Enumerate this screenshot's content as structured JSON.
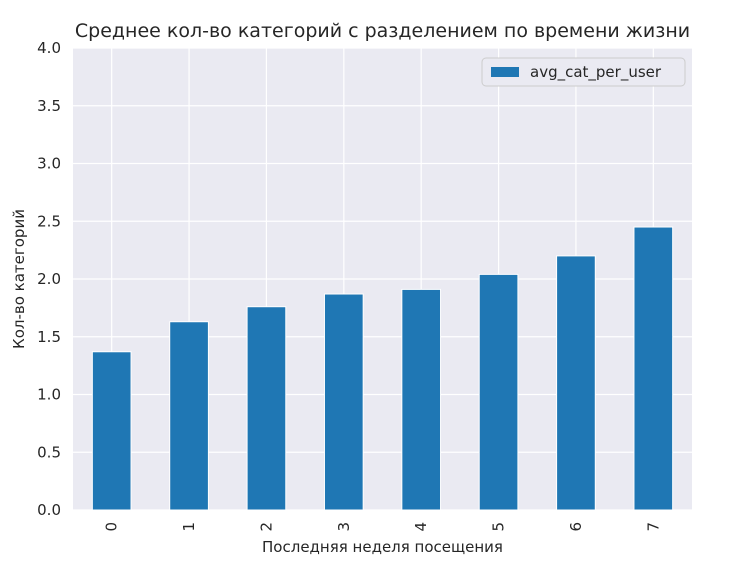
{
  "chart_data": {
    "type": "bar",
    "title": "Среднее кол-во категорий с разделением по времени жизни",
    "xlabel": "Последняя неделя посещения",
    "ylabel": "Кол-во категорий",
    "categories": [
      "0",
      "1",
      "2",
      "3",
      "4",
      "5",
      "6",
      "7"
    ],
    "series": [
      {
        "name": "avg_cat_per_user",
        "values": [
          1.37,
          1.63,
          1.76,
          1.87,
          1.91,
          2.04,
          2.2,
          2.45
        ],
        "color": "#1f77b4"
      }
    ],
    "ylim": [
      0,
      4
    ],
    "yticks": [
      "0.0",
      "0.5",
      "1.0",
      "1.5",
      "2.0",
      "2.5",
      "3.0",
      "3.5",
      "4.0"
    ],
    "grid": true,
    "legend_position": "top-right",
    "background": "#eaeaf2"
  }
}
